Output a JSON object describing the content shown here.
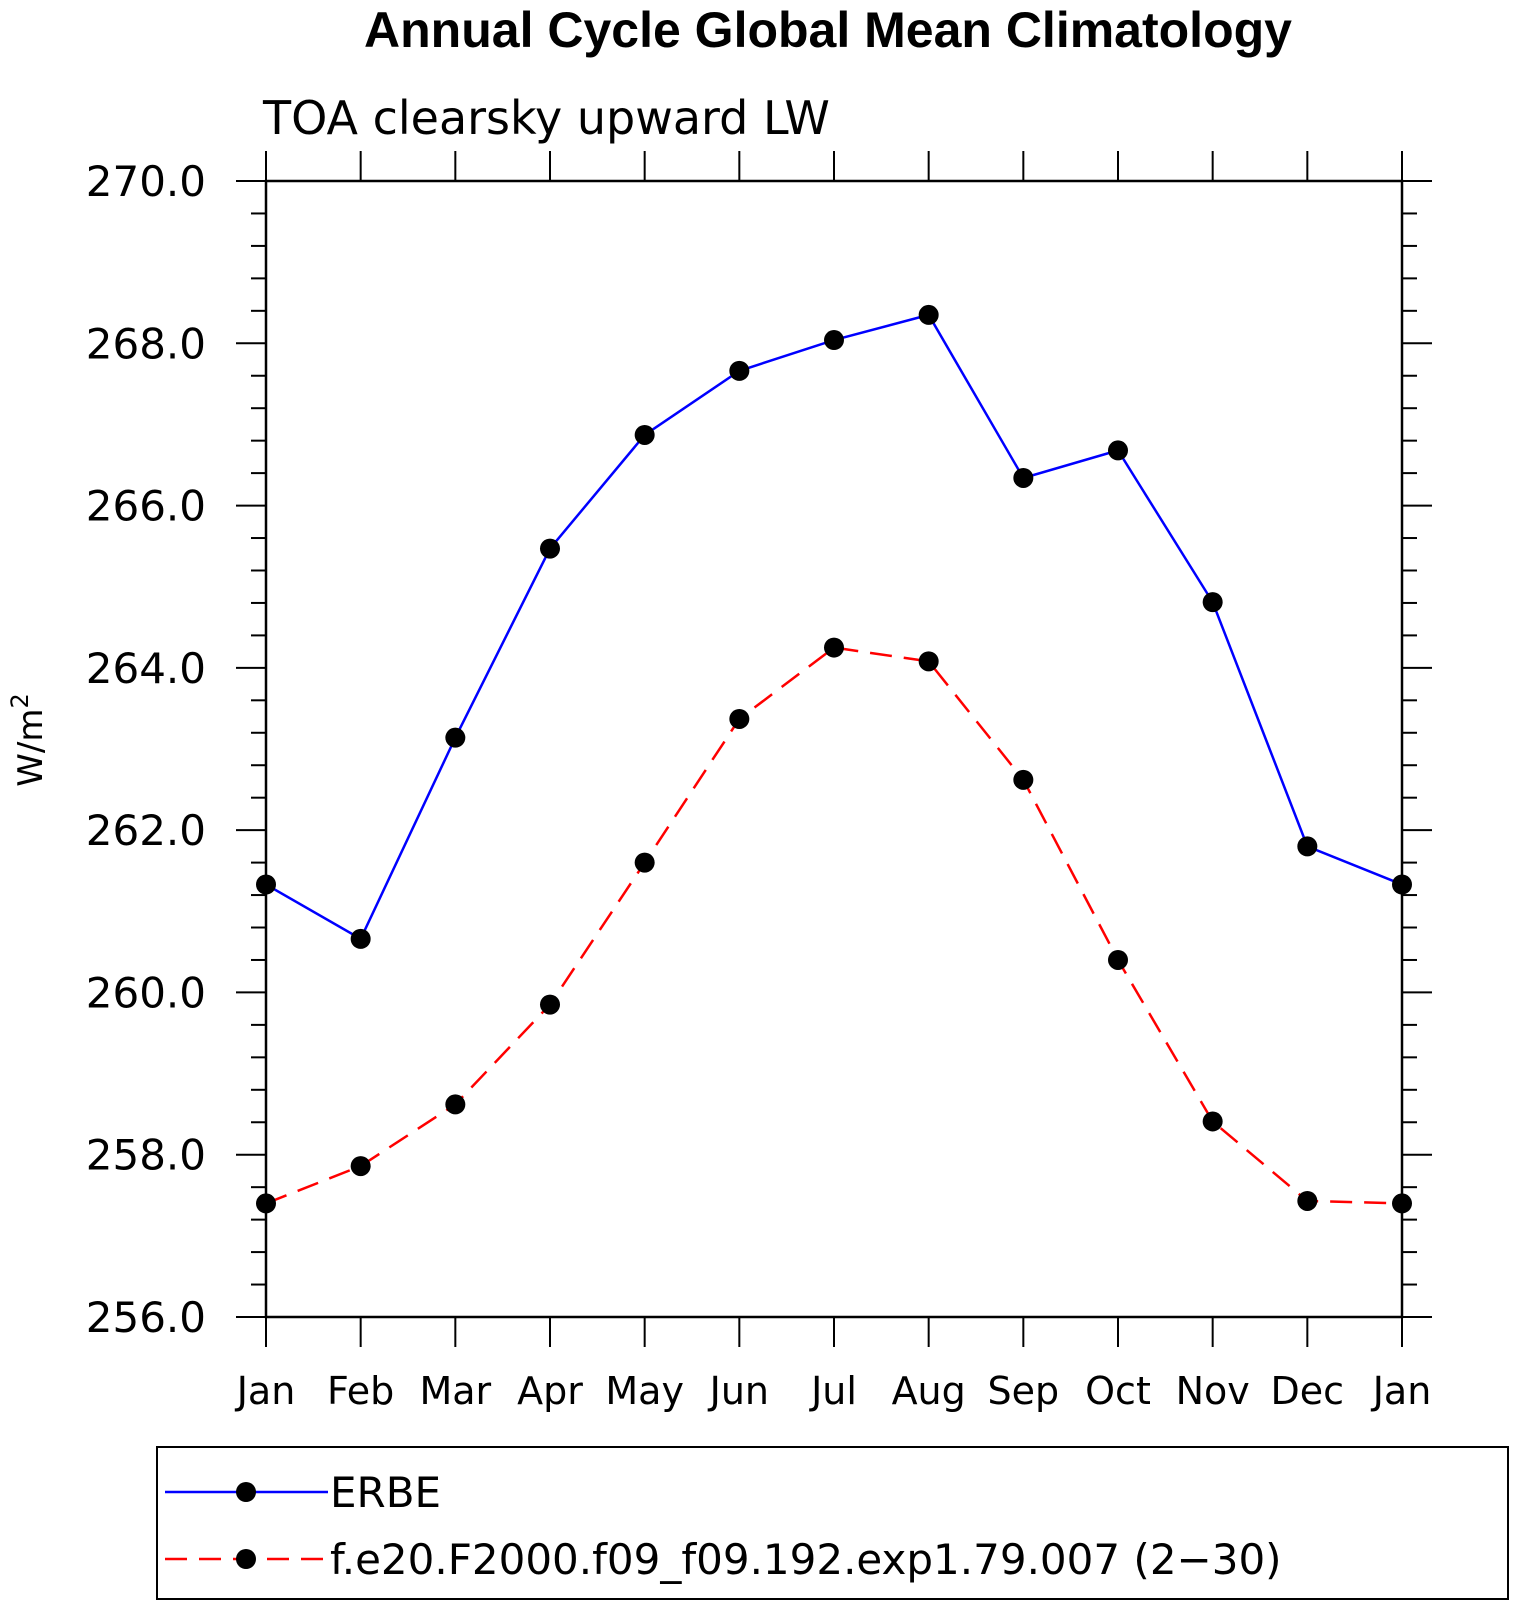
{
  "chart_data": {
    "type": "line",
    "title": "Annual Cycle Global Mean Climatology",
    "subtitle": "TOA clearsky upward LW",
    "xlabel": "",
    "ylabel": "W/m",
    "ylabel_superscript": "2",
    "categories": [
      "Jan",
      "Feb",
      "Mar",
      "Apr",
      "May",
      "Jun",
      "Jul",
      "Aug",
      "Sep",
      "Oct",
      "Nov",
      "Dec",
      "Jan"
    ],
    "ylim": [
      256.0,
      270.0
    ],
    "yticks": [
      "256.0",
      "258.0",
      "260.0",
      "262.0",
      "264.0",
      "266.0",
      "268.0",
      "270.0"
    ],
    "grid": false,
    "legend_position": "bottom",
    "series": [
      {
        "name": "ERBE",
        "color": "#0000ff",
        "dash": "solid",
        "marker": "filled-circle",
        "values": [
          261.33,
          260.66,
          263.14,
          265.47,
          266.87,
          267.66,
          268.04,
          268.35,
          266.34,
          266.68,
          264.81,
          261.8,
          261.33
        ]
      },
      {
        "name": "f.e20.F2000.f09_f09.192.exp1.79.007 (2−30)",
        "color": "#ff0000",
        "dash": "dashed",
        "marker": "filled-circle",
        "values": [
          257.4,
          257.86,
          258.62,
          259.85,
          261.6,
          263.37,
          264.25,
          264.08,
          262.62,
          260.4,
          258.41,
          257.43,
          257.4
        ]
      }
    ]
  }
}
